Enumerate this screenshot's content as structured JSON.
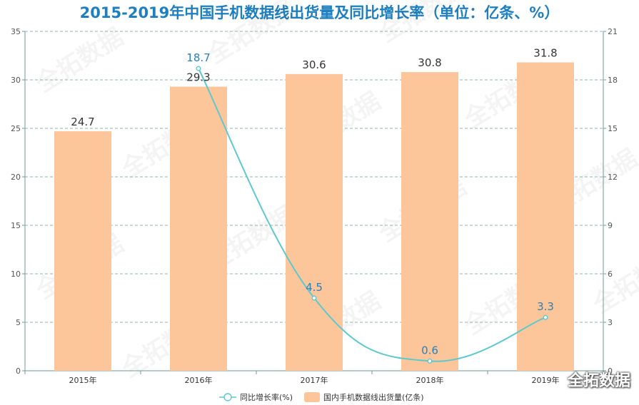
{
  "chart_data": {
    "type": "bar+line",
    "title": "2015-2019年中国手机数据线出货量及同比增长率（单位：亿条、%）",
    "categories": [
      "2015年",
      "2016年",
      "2017年",
      "2018年",
      "2019年"
    ],
    "series": [
      {
        "name": "国内手机数据线出货量(亿条)",
        "type": "bar",
        "axis": "left",
        "color": "#fdc69a",
        "values": [
          24.7,
          29.3,
          30.6,
          30.8,
          31.8
        ],
        "labels": [
          "24.7",
          "29.3",
          "30.6",
          "30.8",
          "31.8"
        ]
      },
      {
        "name": "同比增长率(%)",
        "type": "line",
        "axis": "right",
        "color": "#5ec8d0",
        "values": [
          null,
          18.7,
          4.5,
          0.6,
          3.3
        ],
        "labels": [
          "",
          "18.7",
          "4.5",
          "0.6",
          "3.3"
        ]
      }
    ],
    "y_left": {
      "min": 0,
      "max": 35,
      "ticks": [
        "0",
        "5",
        "10",
        "15",
        "20",
        "25",
        "30",
        "35"
      ]
    },
    "y_right": {
      "min": 0,
      "max": 21,
      "ticks": [
        "0",
        "3",
        "6",
        "9",
        "12",
        "15",
        "18",
        "21"
      ]
    },
    "grid": true,
    "legend": "bottom-center"
  },
  "watermark": "全拓数据",
  "brand": "全拓数据"
}
